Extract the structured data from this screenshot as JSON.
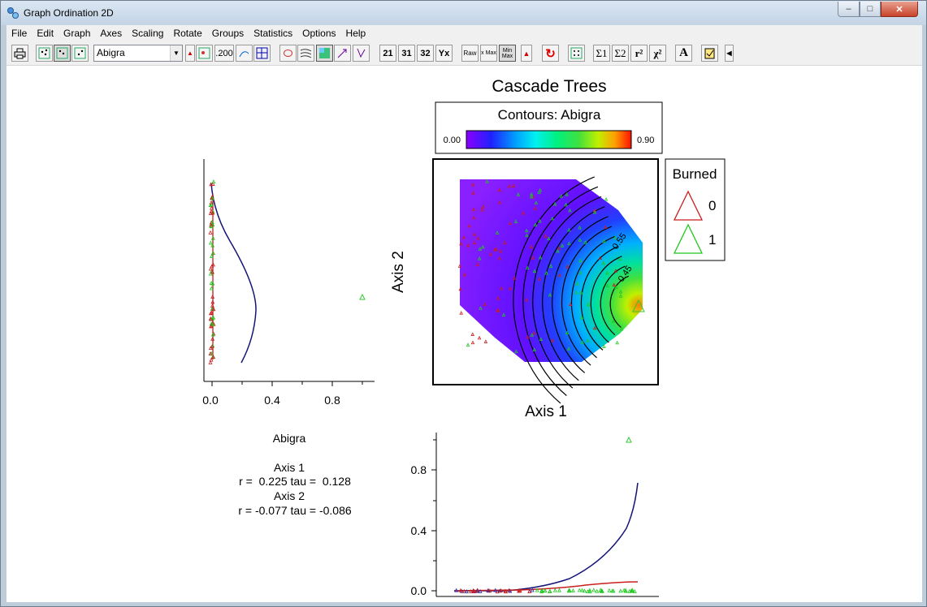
{
  "window": {
    "title": "Graph Ordination 2D",
    "close_glyph": "✕",
    "max_glyph": "□",
    "min_glyph": "–"
  },
  "menu": [
    "File",
    "Edit",
    "Graph",
    "Axes",
    "Scaling",
    "Rotate",
    "Groups",
    "Statistics",
    "Options",
    "Help"
  ],
  "toolbar": {
    "species": "Abigra",
    "value_label": ".200",
    "axis_buttons": [
      "21",
      "31",
      "32",
      "Yx"
    ],
    "raw_label": "Raw",
    "xmax_label": "x Max",
    "minmax_label": "Min Max",
    "sigma1": "Σ1",
    "sigma2": "Σ2",
    "r2": "r²",
    "chi2": "χ²",
    "font_btn": "A"
  },
  "graph": {
    "title": "Cascade Trees",
    "contour_title": "Contours: Abigra",
    "scale_min": "0.00",
    "scale_max": "0.90",
    "axis1_label": "Axis 1",
    "axis2_label": "Axis 2",
    "legend_title": "Burned",
    "legend_items": [
      "0",
      "1"
    ],
    "legend_colors": [
      "#c81e1e",
      "#1ec81e"
    ],
    "contour_labels": [
      "0.55",
      "0.45"
    ],
    "left_tick_labels": [
      "0.0",
      "0.4",
      "0.8"
    ],
    "bottom_tick_labels": [
      "0.8",
      "0.4",
      "0.0"
    ]
  },
  "stats": {
    "species": "Abigra",
    "axis1_heading": "Axis 1",
    "axis1_values": "r =  0.225 tau =  0.128",
    "axis2_heading": "Axis 2",
    "axis2_values": "r = -0.077 tau = -0.086"
  }
}
